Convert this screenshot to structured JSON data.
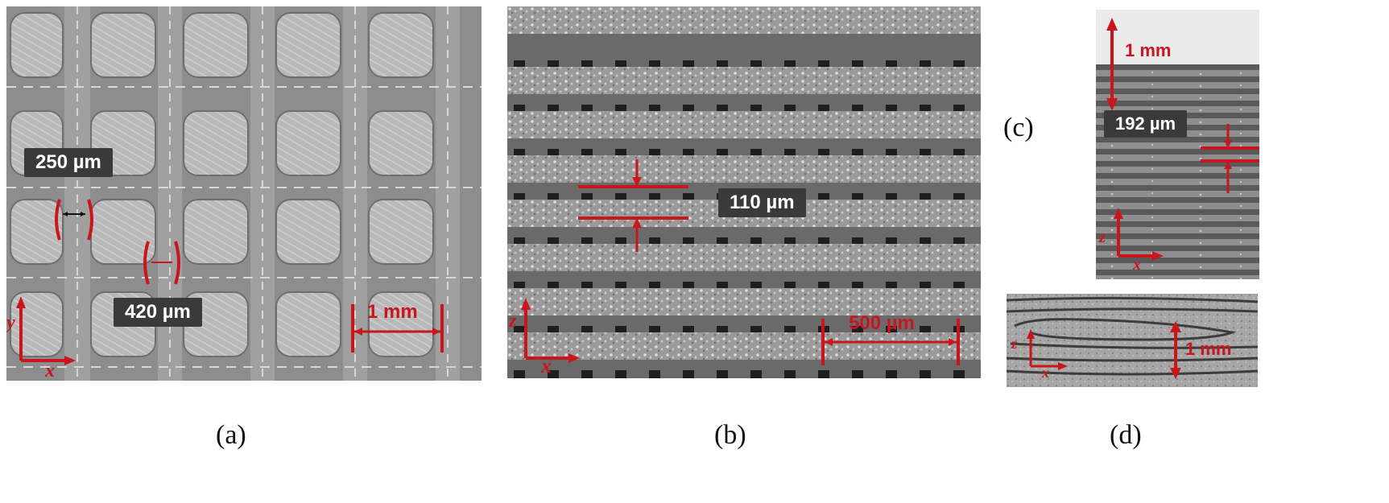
{
  "panel_a": {
    "label": "(a)",
    "measure_strut": "250 µm",
    "measure_gap": "420 µm",
    "scale_bar": "1 mm",
    "axis_vertical": "y",
    "axis_horizontal": "x"
  },
  "panel_b": {
    "label": "(b)",
    "measure_layer": "110 µm",
    "scale_bar": "500 µm",
    "axis_vertical": "z",
    "axis_horizontal": "x"
  },
  "panel_c": {
    "label": "(c)",
    "scale_bar": "1 mm",
    "measure_layer": "192 µm",
    "axis_vertical": "z",
    "axis_horizontal": "x"
  },
  "panel_d": {
    "label": "(d)",
    "scale_bar": "1 mm",
    "axis_vertical": "z",
    "axis_horizontal": "x"
  },
  "colors": {
    "annotation": "#c8161d",
    "label_box": "#3a3a3a"
  }
}
